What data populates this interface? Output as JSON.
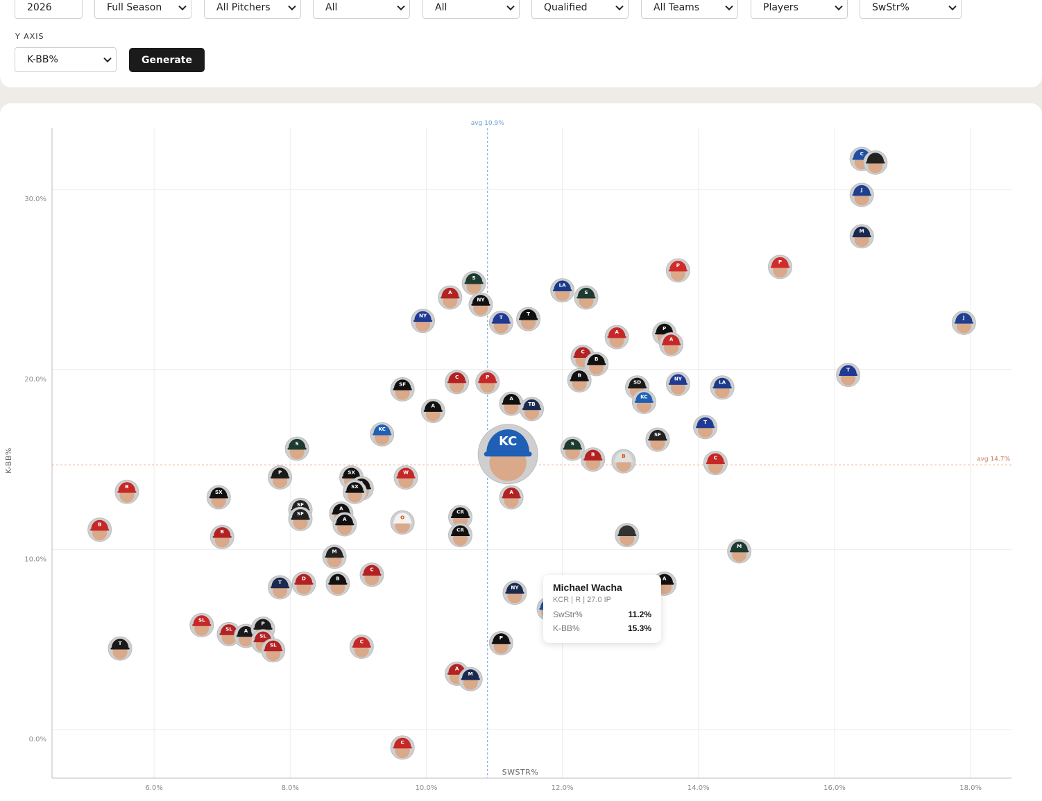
{
  "filters": [
    {
      "name": "season",
      "value": "2026"
    },
    {
      "name": "split",
      "value": "Full Season"
    },
    {
      "name": "pitcher-role",
      "value": "All Pitchers"
    },
    {
      "name": "hand",
      "value": "All"
    },
    {
      "name": "league",
      "value": "All"
    },
    {
      "name": "qualification",
      "value": "Qualified"
    },
    {
      "name": "team",
      "value": "All Teams"
    },
    {
      "name": "group",
      "value": "Players"
    },
    {
      "name": "x-axis",
      "value": "SwStr%"
    }
  ],
  "y_axis": {
    "label": "Y AXIS",
    "value": "K-BB%"
  },
  "generate_label": "Generate",
  "colors": {
    "x_avg": "#6b9bd1",
    "y_avg": "#e8a080",
    "grid": "#ececec",
    "axis": "#bdbdbd"
  },
  "chart_data": {
    "type": "scatter",
    "xlabel": "SWSTR%",
    "ylabel": "K-BB%",
    "xlim": [
      4.5,
      18.6
    ],
    "ylim": [
      -2.7,
      33.4
    ],
    "x_ticks": [
      6,
      8,
      10,
      12,
      14,
      16,
      18
    ],
    "y_ticks": [
      0,
      10,
      20,
      30
    ],
    "x_tick_labels": [
      "6.0%",
      "8.0%",
      "10.0%",
      "12.0%",
      "14.0%",
      "16.0%",
      "18.0%"
    ],
    "y_tick_labels": [
      "0.0%",
      "10.0%",
      "20.0%",
      "30.0%"
    ],
    "x_avg": 10.9,
    "y_avg": 14.7,
    "x_avg_label": "avg 10.9%",
    "y_avg_label": "avg 14.7%",
    "grid": true,
    "points": [
      {
        "x": 16.4,
        "y": 31.7,
        "cap": "#1f4fa3",
        "logo": "C"
      },
      {
        "x": 16.6,
        "y": 31.5,
        "cap": "#222222",
        "logo": ""
      },
      {
        "x": 16.4,
        "y": 29.7,
        "cap": "#1f3f8f",
        "logo": "J"
      },
      {
        "x": 16.4,
        "y": 27.4,
        "cap": "#1a2a4f",
        "logo": "M"
      },
      {
        "x": 13.7,
        "y": 25.5,
        "cap": "#d22b2b",
        "logo": "P"
      },
      {
        "x": 15.2,
        "y": 25.7,
        "cap": "#d22b2b",
        "logo": "P"
      },
      {
        "x": 10.7,
        "y": 24.8,
        "cap": "#1d3b30",
        "logo": "S"
      },
      {
        "x": 12.0,
        "y": 24.4,
        "cap": "#1a3a8a",
        "logo": "LA"
      },
      {
        "x": 12.35,
        "y": 24.0,
        "cap": "#1d3b30",
        "logo": "S"
      },
      {
        "x": 10.35,
        "y": 24.0,
        "cap": "#b22222",
        "logo": "A"
      },
      {
        "x": 10.8,
        "y": 23.6,
        "cap": "#111111",
        "logo": "NY"
      },
      {
        "x": 9.95,
        "y": 22.7,
        "cap": "#1f3a93",
        "logo": "NY"
      },
      {
        "x": 11.1,
        "y": 22.6,
        "cap": "#1f3a93",
        "logo": "T"
      },
      {
        "x": 11.5,
        "y": 22.8,
        "cap": "#111111",
        "logo": "T"
      },
      {
        "x": 12.8,
        "y": 21.8,
        "cap": "#c62828",
        "logo": "A"
      },
      {
        "x": 13.5,
        "y": 22.0,
        "cap": "#111111",
        "logo": "P"
      },
      {
        "x": 13.6,
        "y": 21.4,
        "cap": "#c62828",
        "logo": "A"
      },
      {
        "x": 17.9,
        "y": 22.6,
        "cap": "#1f3f8f",
        "logo": "J"
      },
      {
        "x": 12.3,
        "y": 20.7,
        "cap": "#b22222",
        "logo": "C"
      },
      {
        "x": 12.5,
        "y": 20.3,
        "cap": "#111111",
        "logo": "B"
      },
      {
        "x": 9.65,
        "y": 18.9,
        "cap": "#111111",
        "logo": "SF"
      },
      {
        "x": 10.45,
        "y": 19.3,
        "cap": "#b22222",
        "logo": "C"
      },
      {
        "x": 10.9,
        "y": 19.3,
        "cap": "#c62828",
        "logo": "P"
      },
      {
        "x": 12.25,
        "y": 19.4,
        "cap": "#111111",
        "logo": "B"
      },
      {
        "x": 13.1,
        "y": 19.0,
        "cap": "#1a1a1a",
        "logo": "SD"
      },
      {
        "x": 13.7,
        "y": 19.2,
        "cap": "#1f3a93",
        "logo": "NY"
      },
      {
        "x": 14.35,
        "y": 19.0,
        "cap": "#1a3a8a",
        "logo": "LA"
      },
      {
        "x": 16.2,
        "y": 19.7,
        "cap": "#1f3a93",
        "logo": "T"
      },
      {
        "x": 11.25,
        "y": 18.1,
        "cap": "#111111",
        "logo": "A"
      },
      {
        "x": 11.55,
        "y": 17.8,
        "cap": "#1a2a4f",
        "logo": "TB"
      },
      {
        "x": 13.2,
        "y": 18.2,
        "cap": "#1f5fb5",
        "logo": "KC"
      },
      {
        "x": 10.1,
        "y": 17.7,
        "cap": "#111111",
        "logo": "A"
      },
      {
        "x": 9.35,
        "y": 16.4,
        "cap": "#1f5fb5",
        "logo": "KC"
      },
      {
        "x": 14.1,
        "y": 16.8,
        "cap": "#1f3a93",
        "logo": "T"
      },
      {
        "x": 13.4,
        "y": 16.1,
        "cap": "#222222",
        "logo": "SF"
      },
      {
        "x": 12.15,
        "y": 15.6,
        "cap": "#1d3b30",
        "logo": "S"
      },
      {
        "x": 12.45,
        "y": 15.0,
        "cap": "#b22222",
        "logo": "B"
      },
      {
        "x": 12.9,
        "y": 14.9,
        "cap": "#e0e0e0",
        "logo": "B"
      },
      {
        "x": 8.1,
        "y": 15.6,
        "cap": "#1d3b30",
        "logo": "S"
      },
      {
        "x": 7.85,
        "y": 14.0,
        "cap": "#1a1a1a",
        "logo": "P"
      },
      {
        "x": 8.9,
        "y": 14.0,
        "cap": "#111111",
        "logo": "SX"
      },
      {
        "x": 9.7,
        "y": 14.0,
        "cap": "#c62828",
        "logo": "W"
      },
      {
        "x": 9.05,
        "y": 13.4,
        "cap": "#111111",
        "logo": "A"
      },
      {
        "x": 8.95,
        "y": 13.2,
        "cap": "#111111",
        "logo": "SX"
      },
      {
        "x": 14.25,
        "y": 14.8,
        "cap": "#c62828",
        "logo": "C"
      },
      {
        "x": 11.25,
        "y": 12.9,
        "cap": "#b22222",
        "logo": "A"
      },
      {
        "x": 5.6,
        "y": 13.2,
        "cap": "#c62828",
        "logo": "B"
      },
      {
        "x": 6.95,
        "y": 12.9,
        "cap": "#111111",
        "logo": "SX"
      },
      {
        "x": 8.15,
        "y": 12.2,
        "cap": "#222222",
        "logo": "SF"
      },
      {
        "x": 8.15,
        "y": 11.7,
        "cap": "#222222",
        "logo": "SF"
      },
      {
        "x": 8.75,
        "y": 12.0,
        "cap": "#111111",
        "logo": "A"
      },
      {
        "x": 8.8,
        "y": 11.4,
        "cap": "#111111",
        "logo": "A"
      },
      {
        "x": 9.65,
        "y": 11.5,
        "cap": "#f2f2f2",
        "logo": "O"
      },
      {
        "x": 10.5,
        "y": 11.8,
        "cap": "#111111",
        "logo": "CR"
      },
      {
        "x": 10.5,
        "y": 10.8,
        "cap": "#111111",
        "logo": "CR"
      },
      {
        "x": 12.95,
        "y": 10.8,
        "cap": "#333333",
        "logo": ""
      },
      {
        "x": 5.2,
        "y": 11.1,
        "cap": "#c62828",
        "logo": "B"
      },
      {
        "x": 7.0,
        "y": 10.7,
        "cap": "#b22222",
        "logo": "B"
      },
      {
        "x": 8.65,
        "y": 9.6,
        "cap": "#222222",
        "logo": "M"
      },
      {
        "x": 14.6,
        "y": 9.9,
        "cap": "#1d3b30",
        "logo": "M"
      },
      {
        "x": 7.85,
        "y": 7.9,
        "cap": "#1a2a4f",
        "logo": "T"
      },
      {
        "x": 8.2,
        "y": 8.1,
        "cap": "#b22222",
        "logo": "D"
      },
      {
        "x": 8.7,
        "y": 8.1,
        "cap": "#111111",
        "logo": "B"
      },
      {
        "x": 9.2,
        "y": 8.6,
        "cap": "#b22222",
        "logo": "C"
      },
      {
        "x": 13.5,
        "y": 8.1,
        "cap": "#111111",
        "logo": "A"
      },
      {
        "x": 11.3,
        "y": 7.6,
        "cap": "#1a2a4f",
        "logo": "NY"
      },
      {
        "x": 11.8,
        "y": 6.7,
        "cap": "#1f4fa3",
        "logo": "C"
      },
      {
        "x": 6.7,
        "y": 5.8,
        "cap": "#c62828",
        "logo": "SL"
      },
      {
        "x": 7.1,
        "y": 5.3,
        "cap": "#b22222",
        "logo": "SL"
      },
      {
        "x": 7.35,
        "y": 5.2,
        "cap": "#1a1a1a",
        "logo": "A"
      },
      {
        "x": 7.6,
        "y": 5.6,
        "cap": "#1a1a1a",
        "logo": "P"
      },
      {
        "x": 7.6,
        "y": 4.9,
        "cap": "#b22222",
        "logo": "SL"
      },
      {
        "x": 7.75,
        "y": 4.4,
        "cap": "#b22222",
        "logo": "SL"
      },
      {
        "x": 5.5,
        "y": 4.5,
        "cap": "#1a1a1a",
        "logo": "T"
      },
      {
        "x": 9.05,
        "y": 4.6,
        "cap": "#c62828",
        "logo": "C"
      },
      {
        "x": 11.1,
        "y": 4.8,
        "cap": "#111111",
        "logo": "P"
      },
      {
        "x": 10.45,
        "y": 3.1,
        "cap": "#b22222",
        "logo": "A"
      },
      {
        "x": 10.65,
        "y": 2.8,
        "cap": "#1a2a4f",
        "logo": "M"
      },
      {
        "x": 9.65,
        "y": -1.0,
        "cap": "#c62828",
        "logo": "C"
      }
    ],
    "highlight": {
      "x": 11.2,
      "y": 15.3,
      "cap": "#1f5fb5",
      "logo": "KC"
    }
  },
  "tooltip": {
    "name": "Michael Wacha",
    "sub": "KCR | R | 27.0 IP",
    "rows": [
      {
        "label": "SwStr%",
        "value": "11.2%"
      },
      {
        "label": "K-BB%",
        "value": "15.3%"
      }
    ]
  }
}
